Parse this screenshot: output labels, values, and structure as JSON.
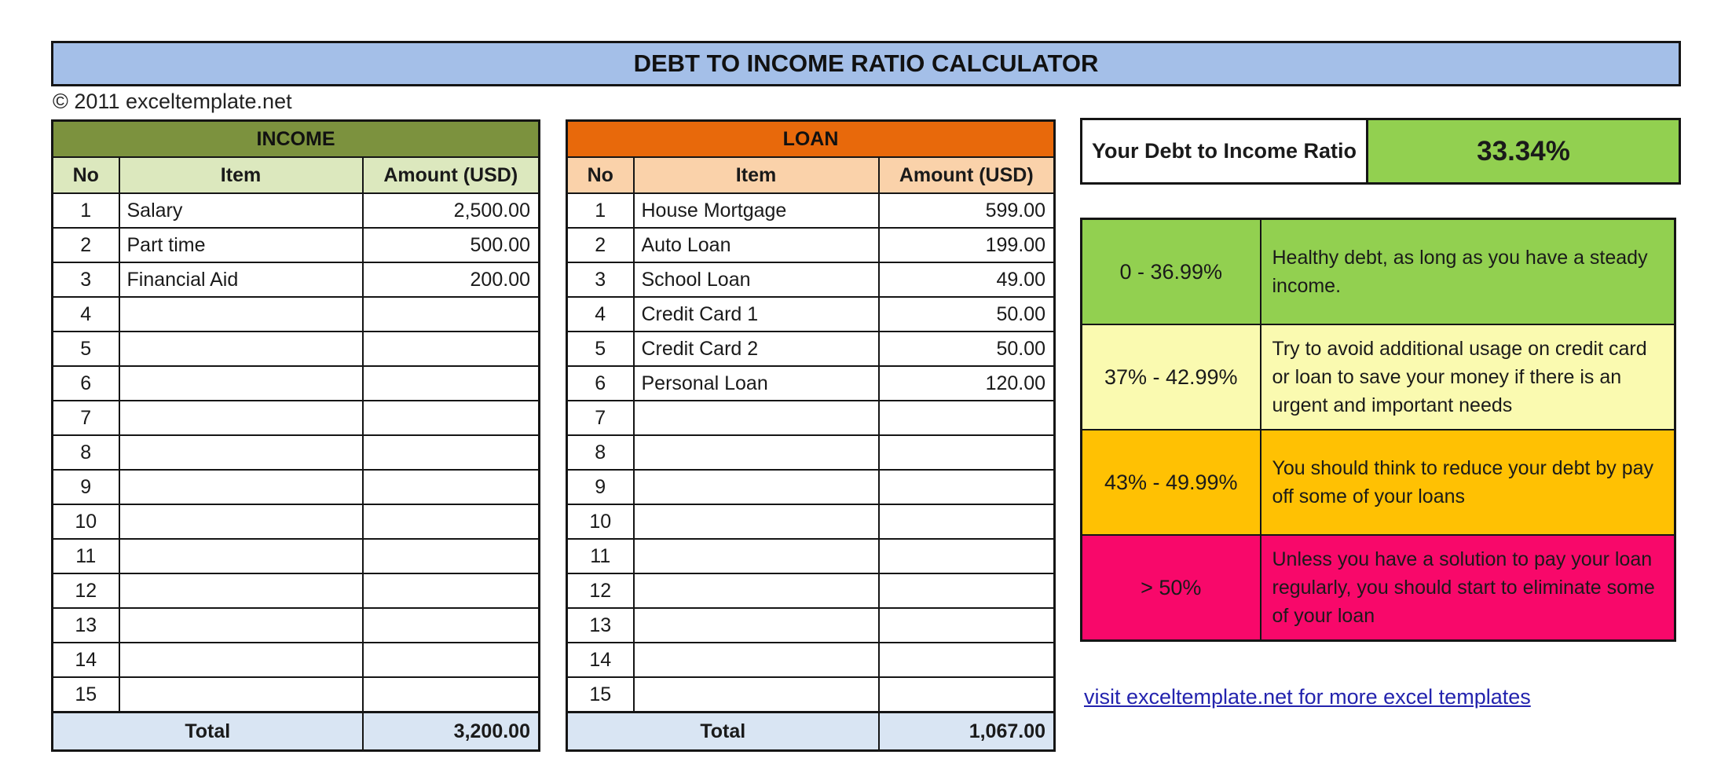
{
  "title": "DEBT TO INCOME RATIO CALCULATOR",
  "copyright": "© 2011 exceltemplate.net",
  "income_table": {
    "title": "INCOME",
    "columns": [
      "No",
      "Item",
      "Amount (USD)"
    ],
    "rows": [
      {
        "no": "1",
        "item": "Salary",
        "amount": "2,500.00"
      },
      {
        "no": "2",
        "item": "Part time",
        "amount": "500.00"
      },
      {
        "no": "3",
        "item": "Financial Aid",
        "amount": "200.00"
      },
      {
        "no": "4",
        "item": "",
        "amount": ""
      },
      {
        "no": "5",
        "item": "",
        "amount": ""
      },
      {
        "no": "6",
        "item": "",
        "amount": ""
      },
      {
        "no": "7",
        "item": "",
        "amount": ""
      },
      {
        "no": "8",
        "item": "",
        "amount": ""
      },
      {
        "no": "9",
        "item": "",
        "amount": ""
      },
      {
        "no": "10",
        "item": "",
        "amount": ""
      },
      {
        "no": "11",
        "item": "",
        "amount": ""
      },
      {
        "no": "12",
        "item": "",
        "amount": ""
      },
      {
        "no": "13",
        "item": "",
        "amount": ""
      },
      {
        "no": "14",
        "item": "",
        "amount": ""
      },
      {
        "no": "15",
        "item": "",
        "amount": ""
      }
    ],
    "total_label": "Total",
    "total_amount": "3,200.00"
  },
  "loan_table": {
    "title": "LOAN",
    "columns": [
      "No",
      "Item",
      "Amount (USD)"
    ],
    "rows": [
      {
        "no": "1",
        "item": "House Mortgage",
        "amount": "599.00"
      },
      {
        "no": "2",
        "item": "Auto Loan",
        "amount": "199.00"
      },
      {
        "no": "3",
        "item": "School Loan",
        "amount": "49.00"
      },
      {
        "no": "4",
        "item": "Credit Card 1",
        "amount": "50.00"
      },
      {
        "no": "5",
        "item": "Credit Card 2",
        "amount": "50.00"
      },
      {
        "no": "6",
        "item": "Personal Loan",
        "amount": "120.00"
      },
      {
        "no": "7",
        "item": "",
        "amount": ""
      },
      {
        "no": "8",
        "item": "",
        "amount": ""
      },
      {
        "no": "9",
        "item": "",
        "amount": ""
      },
      {
        "no": "10",
        "item": "",
        "amount": ""
      },
      {
        "no": "11",
        "item": "",
        "amount": ""
      },
      {
        "no": "12",
        "item": "",
        "amount": ""
      },
      {
        "no": "13",
        "item": "",
        "amount": ""
      },
      {
        "no": "14",
        "item": "",
        "amount": ""
      },
      {
        "no": "15",
        "item": "",
        "amount": ""
      }
    ],
    "total_label": "Total",
    "total_amount": "1,067.00"
  },
  "ratio": {
    "label": "Your Debt to Income Ratio",
    "value": "33.34%"
  },
  "legend": {
    "rows": [
      {
        "range": "0 - 36.99%",
        "description": "Healthy debt, as long as you have a steady income.",
        "color": "#92D050"
      },
      {
        "range": "37% - 42.99%",
        "description": "Try to avoid additional usage on credit card or loan to save your money if there is an urgent and important needs",
        "color": "#FAFAB0"
      },
      {
        "range": "43% - 49.99%",
        "description": "You should think to reduce your debt by pay off some of your loans",
        "color": "#FFC103"
      },
      {
        "range": "> 50%",
        "description": "Unless you have a solution to pay your loan regularly, you should start to eliminate some of your loan",
        "color": "#F8086A"
      }
    ]
  },
  "footer_link": {
    "text": "visit exceltemplate.net for more excel templates"
  },
  "colors": {
    "title_bar": "#A4BFE8",
    "income_header": "#7C923E",
    "income_subheader": "#DCE8BE",
    "loan_header": "#E8690B",
    "loan_subheader": "#FAD2AA",
    "ratio_value_bg": "#92D050",
    "total_row_bg": "#D9E5F3",
    "legend_green": "#92D050",
    "legend_yellow": "#FAFAB0",
    "legend_gold": "#FFC103",
    "legend_pink": "#F8086A",
    "link_blue": "#2323AE",
    "border": "#151515"
  }
}
